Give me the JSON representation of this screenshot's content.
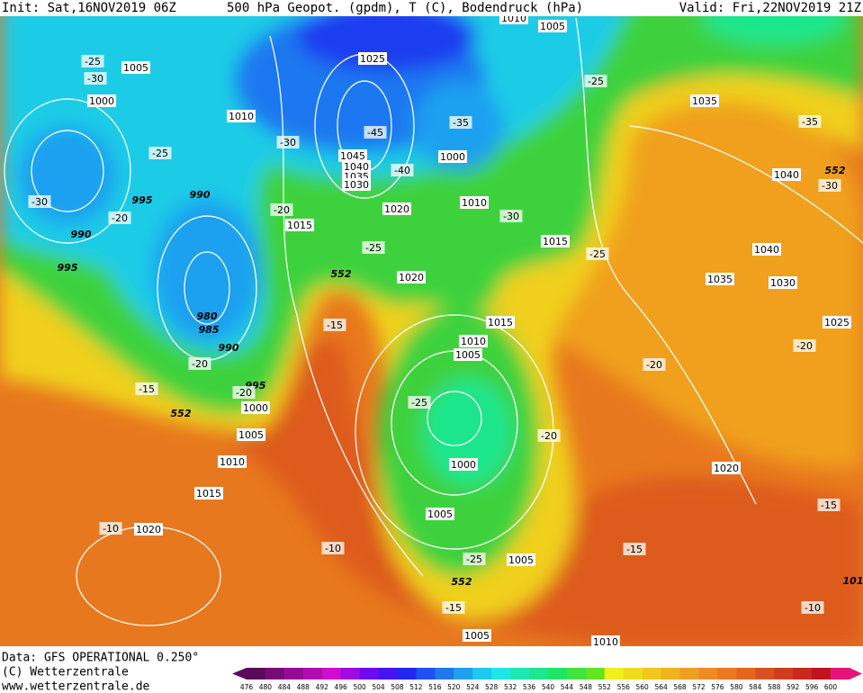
{
  "header": {
    "init": "Init: Sat,16NOV2019 06Z",
    "product": "500 hPa Geopot. (gpdm), T (C), Bodendruck (hPa)",
    "valid": "Valid: Fri,22NOV2019 21Z"
  },
  "footer": {
    "data": "Data: GFS OPERATIONAL 0.250°",
    "copyright": "(C) Wetterzentrale",
    "url": "www.wetterzentrale.de"
  },
  "legend": {
    "scale": [
      476,
      480,
      484,
      488,
      492,
      496,
      500,
      504,
      508,
      512,
      516,
      520,
      524,
      528,
      532,
      536,
      540,
      544,
      548,
      552,
      556,
      560,
      564,
      568,
      572,
      576,
      580,
      584,
      588,
      592,
      596,
      600
    ],
    "colors": [
      "#5a0a5a",
      "#780a78",
      "#960a96",
      "#b40ab4",
      "#d20ad2",
      "#a00ae6",
      "#6e0af0",
      "#4614f0",
      "#1e28f0",
      "#1e50f0",
      "#1e78f0",
      "#1ea0f0",
      "#1ec8f0",
      "#1ee6e6",
      "#1ee6b4",
      "#1ee68c",
      "#1ee664",
      "#3ce63c",
      "#64e61e",
      "#f0f01e",
      "#f0dc1e",
      "#f0c81e",
      "#f0b41e",
      "#f0a01e",
      "#f08c1e",
      "#f0781e",
      "#e6641e",
      "#dc501e",
      "#d23c1e",
      "#c8281e",
      "#be141e",
      "#e6147a"
    ]
  },
  "map_labels": [
    "1005",
    "-25",
    "-30",
    "1000",
    "1010",
    "1025",
    "1005",
    "1010",
    "-25",
    "1035",
    "-35",
    "-35",
    "-45",
    "-30",
    "-25",
    "1000",
    "1045",
    "1040",
    "1035",
    "1030",
    "-40",
    "1040",
    "552",
    "-30",
    "-30",
    "995",
    "990",
    "-20",
    "-20",
    "1015",
    "1020",
    "1010",
    "-30",
    "990",
    "1015",
    "-25",
    "1040",
    "-25",
    "995",
    "552",
    "1020",
    "1035",
    "1030",
    "980",
    "-15",
    "985",
    "1015",
    "1025",
    "1010",
    "990",
    "-20",
    "1005",
    "-20",
    "-20",
    "-15",
    "995",
    "-20",
    "-25",
    "1000",
    "552",
    "1005",
    "-20",
    "1010",
    "1000",
    "1020",
    "1015",
    "-15",
    "1005",
    "-10",
    "1020",
    "-10",
    "-15",
    "-25",
    "1005",
    "552",
    "101",
    "-15",
    "-10",
    "1005",
    "1010"
  ]
}
